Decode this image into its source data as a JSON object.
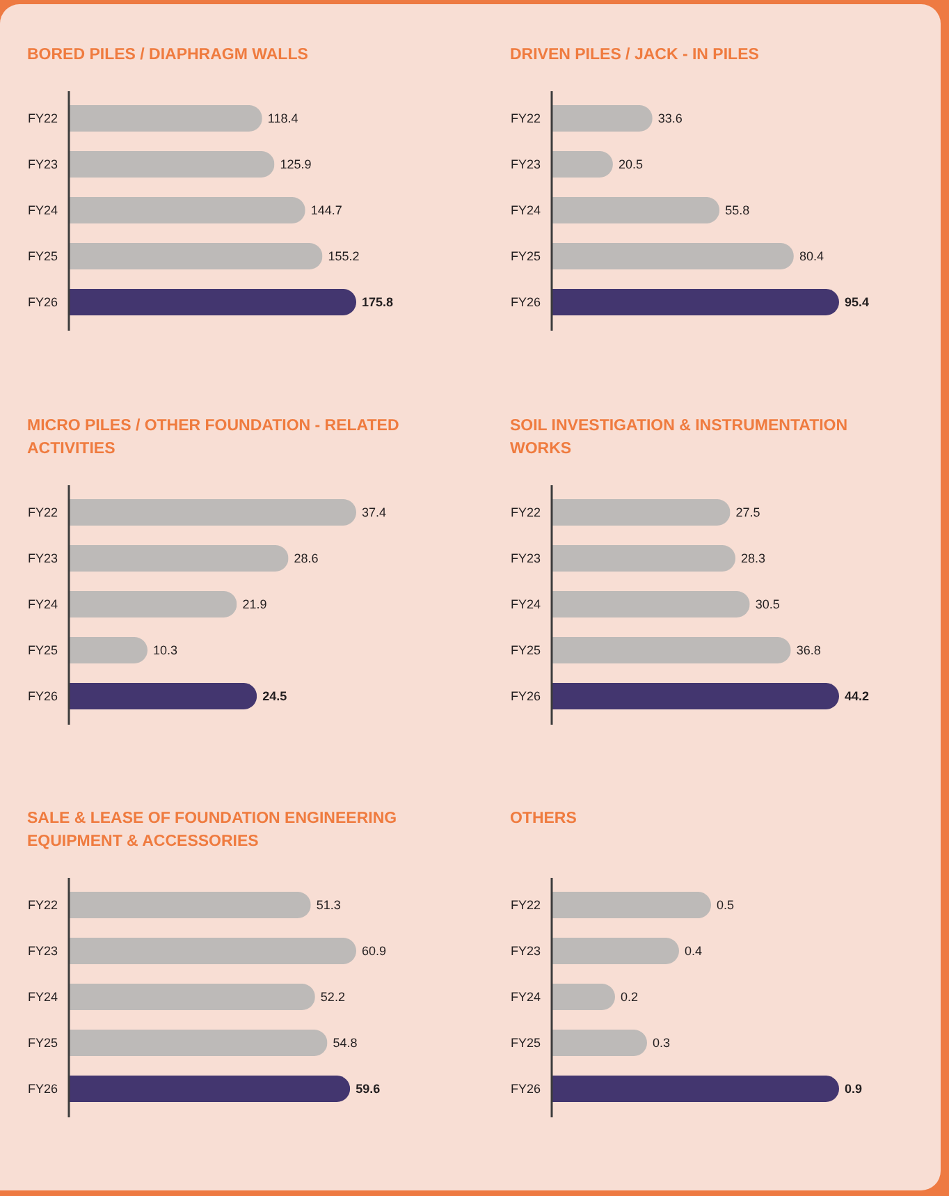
{
  "chart_data": [
    {
      "type": "bar",
      "orientation": "horizontal",
      "title": "BORED PILES / DIAPHRAGM WALLS",
      "categories": [
        "FY22",
        "FY23",
        "FY24",
        "FY25",
        "FY26"
      ],
      "values": [
        118.4,
        125.9,
        144.7,
        155.2,
        175.8
      ],
      "colors": [
        "#bdbab8",
        "#bdbab8",
        "#bdbab8",
        "#bdbab8",
        "#43366f"
      ],
      "data_labels": true,
      "tick_labels": "y"
    },
    {
      "type": "bar",
      "orientation": "horizontal",
      "title": "DRIVEN PILES / JACK - IN PILES",
      "categories": [
        "FY22",
        "FY23",
        "FY24",
        "FY25",
        "FY26"
      ],
      "values": [
        33.6,
        20.5,
        55.8,
        80.4,
        95.4
      ],
      "colors": [
        "#bdbab8",
        "#bdbab8",
        "#bdbab8",
        "#bdbab8",
        "#43366f"
      ],
      "data_labels": true,
      "tick_labels": "y"
    },
    {
      "type": "bar",
      "orientation": "horizontal",
      "title": "MICRO PILES / OTHER FOUNDATION - RELATED ACTIVITIES",
      "categories": [
        "FY22",
        "FY23",
        "FY24",
        "FY25",
        "FY26"
      ],
      "values": [
        37.4,
        28.6,
        21.9,
        10.3,
        24.5
      ],
      "colors": [
        "#bdbab8",
        "#bdbab8",
        "#bdbab8",
        "#bdbab8",
        "#43366f"
      ],
      "data_labels": true,
      "tick_labels": "y"
    },
    {
      "type": "bar",
      "orientation": "horizontal",
      "title": "SOIL INVESTIGATION & INSTRUMENTATION WORKS",
      "categories": [
        "FY22",
        "FY23",
        "FY24",
        "FY25",
        "FY26"
      ],
      "values": [
        27.5,
        28.3,
        30.5,
        36.8,
        44.2
      ],
      "colors": [
        "#bdbab8",
        "#bdbab8",
        "#bdbab8",
        "#bdbab8",
        "#43366f"
      ],
      "data_labels": true,
      "tick_labels": "y"
    },
    {
      "type": "bar",
      "orientation": "horizontal",
      "title": "SALE & LEASE OF FOUNDATION ENGINEERING EQUIPMENT & ACCESSORIES",
      "categories": [
        "FY22",
        "FY23",
        "FY24",
        "FY25",
        "FY26"
      ],
      "values": [
        51.3,
        60.9,
        52.2,
        54.8,
        59.6
      ],
      "colors": [
        "#bdbab8",
        "#bdbab8",
        "#bdbab8",
        "#bdbab8",
        "#43366f"
      ],
      "data_labels": true,
      "tick_labels": "y"
    },
    {
      "type": "bar",
      "orientation": "horizontal",
      "title": "OTHERS",
      "categories": [
        "FY22",
        "FY23",
        "FY24",
        "FY25",
        "FY26"
      ],
      "values": [
        0.5,
        0.4,
        0.2,
        0.3,
        0.9
      ],
      "colors": [
        "#bdbab8",
        "#bdbab8",
        "#bdbab8",
        "#bdbab8",
        "#43366f"
      ],
      "data_labels": true,
      "tick_labels": "y"
    }
  ]
}
